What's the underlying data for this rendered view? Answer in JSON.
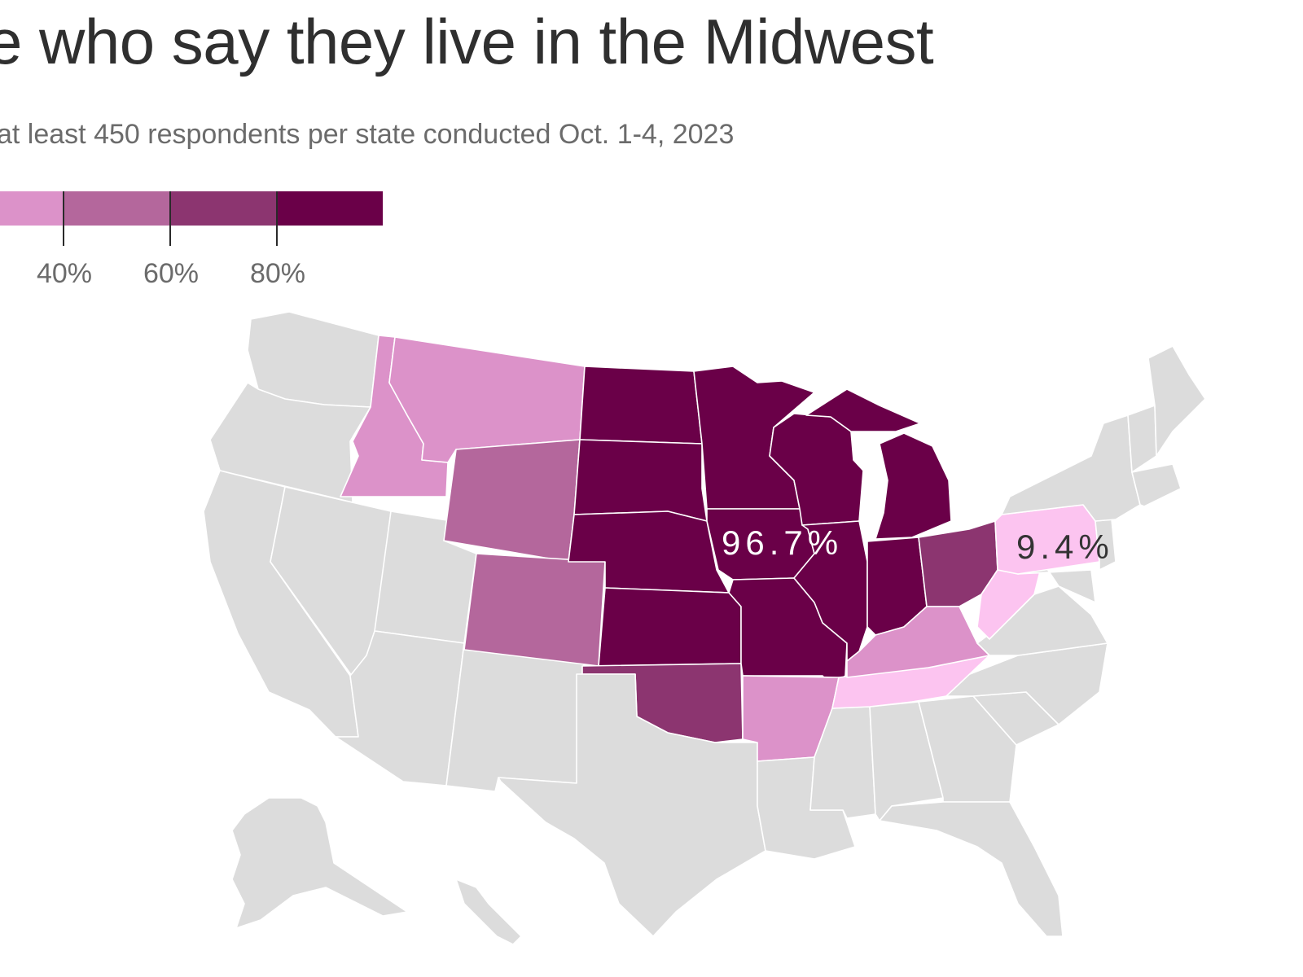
{
  "title": "e who say they live in the Midwest",
  "subtitle": "at least 450 respondents per state conducted Oct. 1-4, 2023",
  "legend": {
    "colors": [
      "#dc92c9",
      "#b4679c",
      "#8c3570",
      "#6a0048"
    ],
    "ticks": [
      "40%",
      "60%",
      "80%"
    ]
  },
  "colors": {
    "base": "#dcdcdc",
    "bin_20_40": "#dc92c9",
    "bin_40_60": "#b4679c",
    "bin_60_80": "#8c3570",
    "bin_80_100": "#6a0048",
    "bin_0_20": "#fcc4f0"
  },
  "map_labels": {
    "iowa": "96.7%",
    "pennsylvania": "9.4%"
  },
  "chart_data": {
    "type": "choropleth",
    "title": "e who say they live in the Midwest",
    "subtitle": "at least 450 respondents per state conducted Oct. 1-4, 2023",
    "legend_ticks": [
      "40%",
      "60%",
      "80%"
    ],
    "highlighted_values": [
      {
        "state": "Iowa",
        "value": 96.7
      },
      {
        "state": "Pennsylvania",
        "value": 9.4
      }
    ]
  }
}
